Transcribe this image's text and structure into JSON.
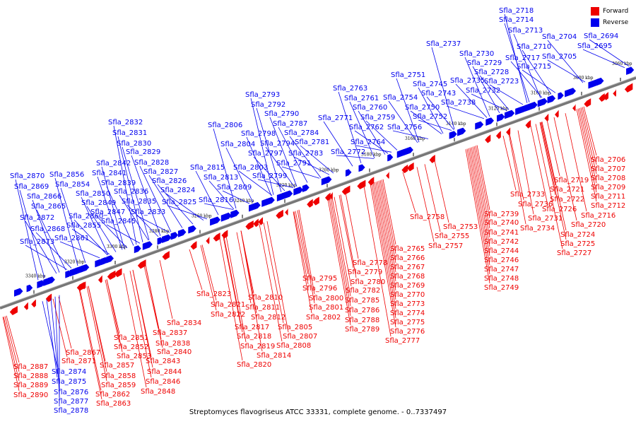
{
  "caption": "Streptomyces flavogriseus ATCC 33331, complete genome. - 0..7337497",
  "legend": [
    {
      "label": "Forward",
      "color": "#ee0000"
    },
    {
      "label": "Reverse",
      "color": "#0000ee"
    }
  ],
  "colors": {
    "forward": "#ee0000",
    "reverse": "#0000ee",
    "backbone": "#888888"
  },
  "ticks": [
    "3060 kbp",
    "3080 kbp",
    "3100 kbp",
    "3120 kbp",
    "3140 kbp",
    "3160 kbp",
    "3180 kbp",
    "3200 kbp",
    "3220 kbp",
    "3240 kbp",
    "3260 kbp",
    "3280 kbp",
    "3300 kbp",
    "3320 kbp",
    "3340 kbp"
  ],
  "reverse_clusters": [
    {
      "genes": [
        "Sfla_2718",
        "Sfla_2714",
        "Sfla_2713",
        "Sfla_2710",
        "Sfla_2717",
        "Sfla_2715",
        "Sfla_2704",
        "Sfla_2705",
        "Sfla_2694",
        "Sfla_2695"
      ]
    },
    {
      "genes": [
        "Sfla_2737",
        "Sfla_2730",
        "Sfla_2729",
        "Sfla_2728",
        "Sfla_2735",
        "Sfla_2723",
        "Sfla_2732",
        "Sfla_2738"
      ]
    },
    {
      "genes": [
        "Sfla_2751",
        "Sfla_2745",
        "Sfla_2743",
        "Sfla_2754",
        "Sfla_2750",
        "Sfla_2752",
        "Sfla_2756"
      ]
    },
    {
      "genes": [
        "Sfla_2763",
        "Sfla_2761",
        "Sfla_2760",
        "Sfla_2771",
        "Sfla_2759",
        "Sfla_2762",
        "Sfla_2764",
        "Sfla_2772"
      ]
    },
    {
      "genes": [
        "Sfla_2793",
        "Sfla_2792",
        "Sfla_2790",
        "Sfla_2787",
        "Sfla_2784",
        "Sfla_2781",
        "Sfla_2783",
        "Sfla_2791"
      ]
    },
    {
      "genes": [
        "Sfla_2806",
        "Sfla_2798",
        "Sfla_2804",
        "Sfla_2794",
        "Sfla_2797",
        "Sfla_2803",
        "Sfla_2799"
      ]
    },
    {
      "genes": [
        "Sfla_2815",
        "Sfla_2813",
        "Sfla_2809",
        "Sfla_2816"
      ]
    },
    {
      "genes": [
        "Sfla_2832",
        "Sfla_2831",
        "Sfla_2830",
        "Sfla_2829",
        "Sfla_2828",
        "Sfla_2827",
        "Sfla_2826",
        "Sfla_2824",
        "Sfla_2825"
      ]
    },
    {
      "genes": [
        "Sfla_2842",
        "Sfla_2841",
        "Sfla_2839",
        "Sfla_2836",
        "Sfla_2835",
        "Sfla_2833"
      ]
    },
    {
      "genes": [
        "Sfla_2856",
        "Sfla_2854",
        "Sfla_2850",
        "Sfla_2849",
        "Sfla_2847",
        "Sfla_2845"
      ]
    },
    {
      "genes": [
        "Sfla_2870",
        "Sfla_2869",
        "Sfla_2866",
        "Sfla_2865",
        "Sfla_2872",
        "Sfla_2860",
        "Sfla_2868",
        "Sfla_2855",
        "Sfla_2861",
        "Sfla_2873"
      ]
    }
  ],
  "forward_clusters": [
    {
      "genes": [
        "Sfla_2706",
        "Sfla_2707",
        "Sfla_2708",
        "Sfla_2709",
        "Sfla_2711",
        "Sfla_2712",
        "Sfla_2716",
        "Sfla_2720",
        "Sfla_2724",
        "Sfla_2725",
        "Sfla_2727"
      ]
    },
    {
      "genes": [
        "Sfla_2719",
        "Sfla_2721",
        "Sfla_2722",
        "Sfla_2726"
      ]
    },
    {
      "genes": [
        "Sfla_2733",
        "Sfla_2736",
        "Sfla_2731",
        "Sfla_2734"
      ]
    },
    {
      "genes": [
        "Sfla_2739",
        "Sfla_2740",
        "Sfla_2741",
        "Sfla_2742",
        "Sfla_2744",
        "Sfla_2746",
        "Sfla_2747",
        "Sfla_2748",
        "Sfla_2749"
      ]
    },
    {
      "genes": [
        "Sfla_2758",
        "Sfla_2753",
        "Sfla_2755",
        "Sfla_2757"
      ]
    },
    {
      "genes": [
        "Sfla_2765",
        "Sfla_2766",
        "Sfla_2767",
        "Sfla_2768",
        "Sfla_2769",
        "Sfla_2770",
        "Sfla_2773",
        "Sfla_2774",
        "Sfla_2775",
        "Sfla_2776",
        "Sfla_2777"
      ]
    },
    {
      "genes": [
        "Sfla_2778",
        "Sfla_2779",
        "Sfla_2780",
        "Sfla_2782",
        "Sfla_2785",
        "Sfla_2786",
        "Sfla_2788",
        "Sfla_2789"
      ]
    },
    {
      "genes": [
        "Sfla_2795",
        "Sfla_2796",
        "Sfla_2800",
        "Sfla_2801",
        "Sfla_2802",
        "Sfla_2805",
        "Sfla_2807",
        "Sfla_2808"
      ]
    },
    {
      "genes": [
        "Sfla_2810",
        "Sfla_2811",
        "Sfla_2812",
        "Sfla_2817",
        "Sfla_2818",
        "Sfla_2819",
        "Sfla_2814",
        "Sfla_2820"
      ]
    },
    {
      "genes": [
        "Sfla_2823",
        "Sfla_2821",
        "Sfla_2822"
      ]
    },
    {
      "genes": [
        "Sfla_2834",
        "Sfla_2837",
        "Sfla_2838",
        "Sfla_2840",
        "Sfla_2843",
        "Sfla_2844",
        "Sfla_2846",
        "Sfla_2848"
      ]
    },
    {
      "genes": [
        "Sfla_2851",
        "Sfla_2852",
        "Sfla_2853",
        "Sfla_2857",
        "Sfla_2858",
        "Sfla_2859",
        "Sfla_2862",
        "Sfla_2863"
      ]
    },
    {
      "genes": [
        "Sfla_2867",
        "Sfla_2871"
      ]
    },
    {
      "genes": [
        "Sfla_2887",
        "Sfla_2888",
        "Sfla_2889",
        "Sfla_2890"
      ]
    }
  ],
  "reverse_bottom_cluster": {
    "genes": [
      "Sfla_2874",
      "Sfla_2875",
      "Sfla_2876",
      "Sfla_2877",
      "Sfla_2878"
    ]
  }
}
